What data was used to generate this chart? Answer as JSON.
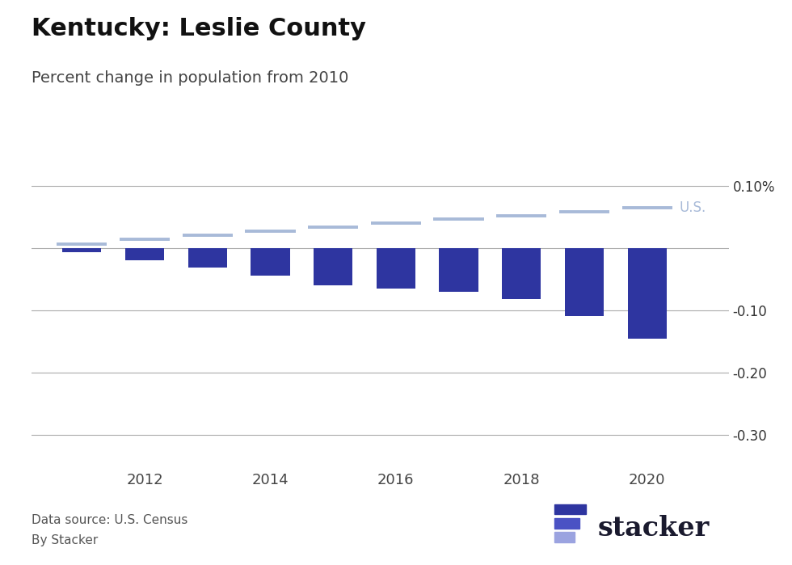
{
  "title": "Kentucky: Leslie County",
  "subtitle": "Percent change in population from 2010",
  "bar_years": [
    2011,
    2012,
    2013,
    2014,
    2015,
    2016,
    2017,
    2018,
    2019,
    2020
  ],
  "bar_values": [
    -0.007,
    -0.02,
    -0.032,
    -0.045,
    -0.06,
    -0.065,
    -0.07,
    -0.082,
    -0.11,
    -0.1455
  ],
  "bar_color": "#2E35A0",
  "us_years": [
    2011,
    2012,
    2013,
    2014,
    2015,
    2016,
    2017,
    2018,
    2019,
    2020
  ],
  "us_values": [
    0.006,
    0.014,
    0.02,
    0.027,
    0.034,
    0.04,
    0.046,
    0.052,
    0.058,
    0.065
  ],
  "us_color": "#A8BAD8",
  "us_label": "U.S.",
  "ylim": [
    -0.355,
    0.135
  ],
  "yticks": [
    0.1,
    0.0,
    -0.1,
    -0.2,
    -0.3
  ],
  "ytick_labels": [
    "0.10%",
    "",
    "-0.10",
    "-0.20",
    "-0.30"
  ],
  "xtick_years": [
    2012,
    2014,
    2016,
    2018,
    2020
  ],
  "footer_left1": "Data source: U.S. Census",
  "footer_left2": "By Stacker",
  "background_color": "#FFFFFF",
  "title_fontsize": 22,
  "subtitle_fontsize": 14,
  "grid_color": "#AAAAAA",
  "bar_width": 0.62
}
